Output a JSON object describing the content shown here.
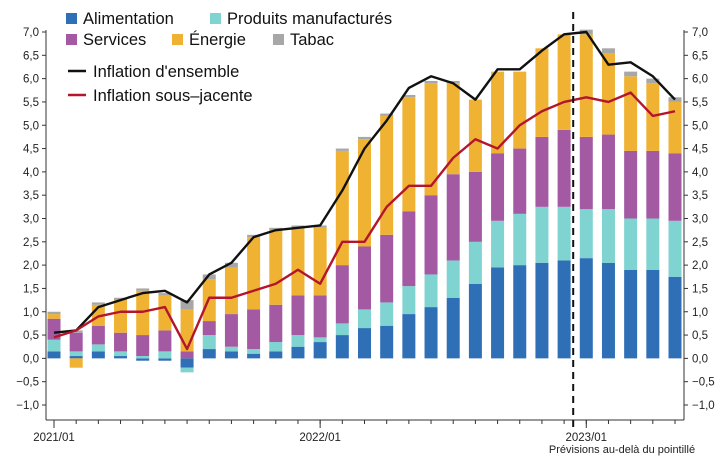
{
  "chart_data": {
    "type": "bar",
    "stacked": true,
    "note": "Prévisions au-delà du pointillé",
    "forecast_start_index": 24,
    "ylim": [
      -1.0,
      7.0
    ],
    "yticks": [
      "7,0",
      "6,5",
      "6,0",
      "5,5",
      "5,0",
      "4,5",
      "4,0",
      "3,5",
      "3,0",
      "2,5",
      "2,0",
      "1,5",
      "1,0",
      "0,5",
      "0,0",
      "−0,5",
      "−1,0"
    ],
    "ytick_values": [
      7.0,
      6.5,
      6.0,
      5.5,
      5.0,
      4.5,
      4.0,
      3.5,
      3.0,
      2.5,
      2.0,
      1.5,
      1.0,
      0.5,
      0.0,
      -0.5,
      -1.0
    ],
    "xtick_labels": [
      {
        "index": 0,
        "label": "2021/01"
      },
      {
        "index": 12,
        "label": "2022/01"
      },
      {
        "index": 24,
        "label": "2023/01"
      }
    ],
    "grid": false,
    "legend_position": "top-left",
    "colors": {
      "alimentation": "#2f6fb6",
      "produits": "#7fd3d1",
      "services": "#a35aa3",
      "energie": "#efb233",
      "tabac": "#a7a7a7",
      "ensemble": "#111111",
      "sous_jacente": "#b3162c"
    },
    "series": [
      {
        "key": "alimentation",
        "name": "Alimentation",
        "color": "#2f6fb6",
        "values": [
          0.15,
          0.05,
          0.15,
          0.05,
          -0.05,
          -0.05,
          -0.2,
          0.2,
          0.15,
          0.1,
          0.15,
          0.25,
          0.35,
          0.5,
          0.65,
          0.7,
          0.95,
          1.1,
          1.3,
          1.6,
          1.95,
          2.0,
          2.05,
          2.1,
          2.15,
          2.05,
          1.9,
          1.9,
          1.75
        ]
      },
      {
        "key": "produits",
        "name": "Produits manufacturés",
        "color": "#7fd3d1",
        "values": [
          0.25,
          0.1,
          0.15,
          0.1,
          0.05,
          0.15,
          -0.1,
          0.3,
          0.1,
          0.1,
          0.2,
          0.25,
          0.1,
          0.25,
          0.4,
          0.5,
          0.6,
          0.7,
          0.8,
          0.9,
          1.0,
          1.1,
          1.2,
          1.15,
          1.05,
          1.15,
          1.1,
          1.1,
          1.2
        ]
      },
      {
        "key": "services",
        "name": "Services",
        "color": "#a35aa3",
        "values": [
          0.45,
          0.4,
          0.4,
          0.4,
          0.45,
          0.45,
          0.15,
          0.3,
          0.7,
          0.85,
          0.8,
          0.85,
          0.9,
          1.25,
          1.35,
          1.45,
          1.6,
          1.7,
          1.85,
          1.5,
          1.45,
          1.4,
          1.5,
          1.65,
          1.55,
          1.6,
          1.45,
          1.45,
          1.45
        ]
      },
      {
        "key": "energie",
        "name": "Énergie",
        "color": "#efb233",
        "values": [
          0.1,
          -0.2,
          0.45,
          0.7,
          0.95,
          0.75,
          0.9,
          0.9,
          1.0,
          1.55,
          1.6,
          1.45,
          1.45,
          2.45,
          2.3,
          2.55,
          2.45,
          2.4,
          1.95,
          1.55,
          1.75,
          1.65,
          1.9,
          2.05,
          2.2,
          1.75,
          1.6,
          1.45,
          1.1
        ]
      },
      {
        "key": "tabac",
        "name": "Tabac",
        "color": "#a7a7a7",
        "values": [
          0.05,
          0.05,
          0.05,
          0.05,
          0.05,
          0.05,
          0.2,
          0.1,
          0.1,
          0.05,
          0.05,
          0.05,
          0.05,
          0.05,
          0.05,
          0.05,
          0.05,
          0.05,
          0.05,
          0.0,
          0.0,
          0.0,
          0.0,
          0.0,
          0.1,
          0.1,
          0.1,
          0.1,
          0.1
        ]
      },
      {
        "key": "ensemble",
        "name": "Inflation d'ensemble",
        "type": "line",
        "color": "#111111",
        "values": [
          0.55,
          0.6,
          1.1,
          1.25,
          1.4,
          1.45,
          1.2,
          1.8,
          2.05,
          2.6,
          2.75,
          2.8,
          2.85,
          3.6,
          4.5,
          5.1,
          5.8,
          6.05,
          5.9,
          5.55,
          6.2,
          6.2,
          6.6,
          6.95,
          7.0,
          6.3,
          6.35,
          6.05,
          5.55
        ]
      },
      {
        "key": "sous_jacente",
        "name": "Inflation sous–jacente",
        "type": "line",
        "color": "#b3162c",
        "values": [
          0.45,
          0.6,
          0.9,
          1.0,
          1.0,
          1.1,
          0.2,
          1.3,
          1.3,
          1.45,
          1.6,
          1.9,
          1.6,
          2.5,
          2.5,
          3.25,
          3.7,
          3.7,
          4.3,
          4.7,
          4.5,
          5.0,
          5.3,
          5.5,
          5.6,
          5.5,
          5.7,
          5.2,
          5.3
        ]
      }
    ]
  }
}
